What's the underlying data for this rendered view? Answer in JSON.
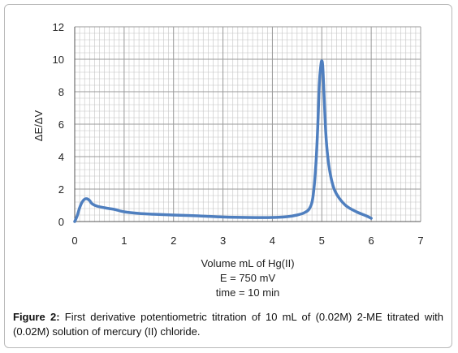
{
  "figure": {
    "caption_label": "Figure 2:",
    "caption_text": " First derivative potentiometric titration of 10 mL of (0.02M) 2-ME titrated with (0.02M) solution of mercury (II) chloride."
  },
  "chart_data": {
    "type": "line",
    "title": "",
    "xlabel_lines": [
      "Volume mL of Hg(II)",
      "E = 750 mV",
      "time = 10 min"
    ],
    "ylabel": "ΔE/ΔV",
    "xlim": [
      0,
      7
    ],
    "ylim": [
      0,
      12
    ],
    "x_ticks": [
      0,
      1,
      2,
      3,
      4,
      5,
      6,
      7
    ],
    "y_ticks": [
      0,
      2,
      4,
      6,
      8,
      10,
      12
    ],
    "grid": true,
    "legend": "none",
    "line_color": "#4f7fbf",
    "grid_color": "#c4c4c4",
    "series": [
      {
        "x": [
          0,
          0.05,
          0.1,
          0.15,
          0.2,
          0.25,
          0.3,
          0.35,
          0.45,
          0.6,
          0.8,
          1.0,
          1.3,
          1.6,
          2.0,
          2.5,
          3.0,
          3.5,
          4.0,
          4.3,
          4.5,
          4.65,
          4.75,
          4.82,
          4.88,
          4.92,
          4.95,
          4.98,
          5.0,
          5.02,
          5.05,
          5.08,
          5.12,
          5.18,
          5.25,
          5.35,
          5.5,
          5.7,
          5.9,
          6.0
        ],
        "y": [
          0.0,
          0.35,
          0.85,
          1.2,
          1.38,
          1.4,
          1.3,
          1.1,
          0.95,
          0.85,
          0.75,
          0.6,
          0.5,
          0.45,
          0.4,
          0.35,
          0.28,
          0.25,
          0.25,
          0.3,
          0.4,
          0.55,
          0.8,
          1.5,
          3.5,
          6.0,
          8.5,
          9.6,
          9.9,
          9.5,
          7.5,
          5.5,
          4.0,
          2.8,
          2.0,
          1.45,
          0.95,
          0.6,
          0.35,
          0.2
        ]
      }
    ]
  }
}
